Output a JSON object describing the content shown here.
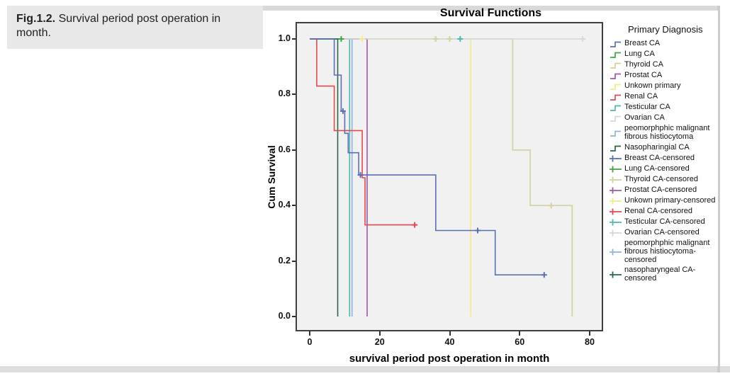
{
  "caption": {
    "label": "Fig.1.2.",
    "text": " Survival period post operation in month."
  },
  "chart_data": {
    "type": "line",
    "subtype": "kaplan-meier-step",
    "title": "Survival Functions",
    "xlabel": "survival period post operation in month",
    "ylabel": "Cum Survival",
    "xticks": [
      0,
      20,
      40,
      60,
      80
    ],
    "ytick_labels": [
      "0.0",
      "0.2",
      "0.4",
      "0.6",
      "0.8",
      "1.0"
    ],
    "yticks": [
      0.0,
      0.2,
      0.4,
      0.6,
      0.8,
      1.0
    ],
    "xlim": [
      -4,
      84
    ],
    "ylim": [
      -0.05,
      1.06
    ],
    "grid": false,
    "plot_bg": "#f1f1f1",
    "plot_border": "#3f3f3f",
    "legend_title": "Primary Diagnosis",
    "legend_position": "right",
    "series": [
      {
        "name": "Unkown primary",
        "color": "#f0ec86",
        "points": [
          [
            0,
            1
          ],
          [
            46,
            1
          ],
          [
            46,
            0
          ]
        ],
        "censored": [
          [
            15,
            1
          ]
        ]
      },
      {
        "name": "Thyroid CA",
        "color": "#d4d1a0",
        "points": [
          [
            0,
            1
          ],
          [
            58,
            1
          ],
          [
            58,
            0.6
          ],
          [
            63,
            0.6
          ],
          [
            63,
            0.4
          ],
          [
            75,
            0.4
          ],
          [
            75,
            0
          ]
        ],
        "censored": [
          [
            36,
            1
          ],
          [
            40,
            1
          ],
          [
            69,
            0.4
          ]
        ]
      },
      {
        "name": "Prostat CA",
        "color": "#9c59a8",
        "points": [
          [
            0,
            1
          ],
          [
            16.4,
            1
          ],
          [
            16.4,
            0
          ]
        ],
        "censored": []
      },
      {
        "name": "Testicular CA",
        "color": "#4fb6b2",
        "points": [
          [
            0,
            1
          ],
          [
            11.4,
            1
          ],
          [
            11.4,
            0
          ]
        ],
        "censored": [
          [
            43,
            1
          ]
        ]
      },
      {
        "name": "peomorphphic malignant fibrous histiocytoma",
        "color": "#8fb3e0",
        "points": [
          [
            0,
            1
          ],
          [
            12.1,
            1
          ],
          [
            12.1,
            0
          ]
        ],
        "censored": []
      },
      {
        "name": "Ovarian CA",
        "color": "#d8d8d8",
        "points": [
          [
            0,
            1
          ],
          [
            78,
            1
          ]
        ],
        "censored": [
          [
            78,
            1
          ]
        ]
      },
      {
        "name": "Lung CA",
        "color": "#3ea648",
        "points": [
          [
            0,
            1
          ],
          [
            9,
            1
          ]
        ],
        "censored": [
          [
            9,
            1
          ]
        ]
      },
      {
        "name": "Nasopharingial CA",
        "color": "#26684d",
        "points": [
          [
            0,
            1
          ],
          [
            8,
            1
          ],
          [
            8,
            0
          ]
        ],
        "censored": []
      },
      {
        "name": "Renal CA",
        "color": "#e4494f",
        "points": [
          [
            0,
            1
          ],
          [
            2,
            1
          ],
          [
            2,
            0.83
          ],
          [
            7,
            0.83
          ],
          [
            7,
            0.67
          ],
          [
            15,
            0.67
          ],
          [
            15,
            0.5
          ],
          [
            15.8,
            0.5
          ],
          [
            15.8,
            0.33
          ],
          [
            30,
            0.33
          ]
        ],
        "censored": [
          [
            30,
            0.33
          ]
        ]
      },
      {
        "name": "Breast CA",
        "color": "#5b6fb5",
        "points": [
          [
            0,
            1
          ],
          [
            7,
            1
          ],
          [
            7,
            0.87
          ],
          [
            9,
            0.87
          ],
          [
            9,
            0.74
          ],
          [
            10,
            0.74
          ],
          [
            10,
            0.66
          ],
          [
            11,
            0.66
          ],
          [
            11,
            0.59
          ],
          [
            14,
            0.59
          ],
          [
            14,
            0.51
          ],
          [
            36,
            0.51
          ],
          [
            36,
            0.31
          ],
          [
            53,
            0.31
          ],
          [
            53,
            0.15
          ],
          [
            67,
            0.15
          ]
        ],
        "censored": [
          [
            9.5,
            0.74
          ],
          [
            14.5,
            0.51
          ],
          [
            48,
            0.31
          ],
          [
            67,
            0.15
          ]
        ]
      }
    ],
    "legend_entries": [
      {
        "label": "Breast CA",
        "color": "#5b6fb5",
        "kind": "line"
      },
      {
        "label": "Lung CA",
        "color": "#3ea648",
        "kind": "line"
      },
      {
        "label": "Thyroid CA",
        "color": "#d4d1a0",
        "kind": "line"
      },
      {
        "label": "Prostat CA",
        "color": "#9c59a8",
        "kind": "line"
      },
      {
        "label": "Unkown primary",
        "color": "#f0ec86",
        "kind": "line"
      },
      {
        "label": "Renal CA",
        "color": "#e4494f",
        "kind": "line"
      },
      {
        "label": "Testicular CA",
        "color": "#4fb6b2",
        "kind": "line"
      },
      {
        "label": "Ovarian CA",
        "color": "#d8d8d8",
        "kind": "line"
      },
      {
        "label": "peomorphphic malignant fibrous histiocytoma",
        "color": "#8fb3e0",
        "kind": "line"
      },
      {
        "label": "Nasopharingial CA",
        "color": "#26684d",
        "kind": "line"
      },
      {
        "label": "Breast CA-censored",
        "color": "#5b6fb5",
        "kind": "censored"
      },
      {
        "label": "Lung CA-censored",
        "color": "#3ea648",
        "kind": "censored"
      },
      {
        "label": "Thyroid CA-censored",
        "color": "#d4d1a0",
        "kind": "censored"
      },
      {
        "label": "Prostat CA-censored",
        "color": "#9c59a8",
        "kind": "censored"
      },
      {
        "label": "Unkown primary-censored",
        "color": "#f0ec86",
        "kind": "censored"
      },
      {
        "label": "Renal CA-censored",
        "color": "#e4494f",
        "kind": "censored"
      },
      {
        "label": "Testicular CA-censored",
        "color": "#4fb6b2",
        "kind": "censored"
      },
      {
        "label": "Ovarian CA-censored",
        "color": "#d8d8d8",
        "kind": "censored"
      },
      {
        "label": "peomorphphic malignant fibrous histiocytoma-censored",
        "color": "#8fb3e0",
        "kind": "censored"
      },
      {
        "label": "nasopharyngeal CA-censored",
        "color": "#26684d",
        "kind": "censored"
      }
    ]
  }
}
